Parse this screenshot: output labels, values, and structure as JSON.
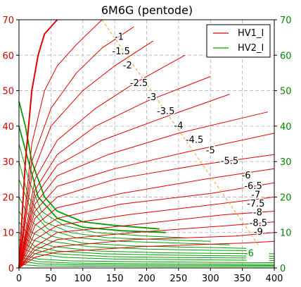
{
  "chart_data": {
    "type": "line",
    "title": "6M6G (pentode)",
    "xlabel": "",
    "ylabel": "",
    "xlim": [
      0,
      400
    ],
    "ylim_left": [
      0,
      70
    ],
    "ylim_right": [
      0,
      70
    ],
    "x_ticks": [
      "0",
      "50",
      "100",
      "150",
      "200",
      "250",
      "300",
      "350",
      "400"
    ],
    "y_ticks_left": [
      "0",
      "10",
      "20",
      "30",
      "40",
      "50",
      "60",
      "70"
    ],
    "y_ticks_right": [
      "0",
      "10",
      "20",
      "30",
      "40",
      "50",
      "60",
      "70"
    ],
    "grid": true,
    "legend_position": "top-right",
    "colors": {
      "hv1": "#e00000",
      "hv2": "#00a000",
      "load_line": "#f0a030",
      "text_right": "#008800"
    },
    "series": [
      {
        "name": "HV1_I",
        "color": "#e00000"
      },
      {
        "name": "HV2_I",
        "color": "#00a000"
      }
    ],
    "curve_labels": [
      "-1",
      "-1.5",
      "-2",
      "-2.5",
      "-3",
      "-3.5",
      "-4",
      "-4.5",
      "-5",
      "-5.5",
      "-6",
      "-6.5",
      "-7",
      "-7.5",
      "-8",
      "-8.5",
      "-9"
    ],
    "curve_label_positions": [
      {
        "x": 157,
        "y": 65
      },
      {
        "x": 160,
        "y": 61
      },
      {
        "x": 170,
        "y": 57
      },
      {
        "x": 188,
        "y": 52
      },
      {
        "x": 208,
        "y": 48
      },
      {
        "x": 230,
        "y": 44
      },
      {
        "x": 250,
        "y": 40
      },
      {
        "x": 275,
        "y": 36
      },
      {
        "x": 300,
        "y": 33
      },
      {
        "x": 330,
        "y": 30
      },
      {
        "x": 356,
        "y": 26
      },
      {
        "x": 367,
        "y": 23
      },
      {
        "x": 371,
        "y": 20.5
      },
      {
        "x": 371,
        "y": 18
      },
      {
        "x": 374,
        "y": 15.5
      },
      {
        "x": 375,
        "y": 12.5
      },
      {
        "x": 375,
        "y": 10
      }
    ],
    "extra_label": {
      "text": "-6",
      "x": 374,
      "y": 4
    },
    "load_line": {
      "x": [
        130,
        400
      ],
      "y": [
        70,
        0
      ]
    },
    "hv1_curves": [
      {
        "id": "c1",
        "points": [
          [
            0,
            0
          ],
          [
            10,
            30
          ],
          [
            20,
            50
          ],
          [
            30,
            60
          ],
          [
            40,
            66
          ],
          [
            60,
            70
          ]
        ]
      },
      {
        "id": "c2",
        "points": [
          [
            0,
            0
          ],
          [
            20,
            35
          ],
          [
            40,
            50
          ],
          [
            60,
            57
          ],
          [
            90,
            63
          ],
          [
            130,
            70
          ]
        ]
      },
      {
        "id": "c3",
        "points": [
          [
            0,
            0
          ],
          [
            20,
            30
          ],
          [
            50,
            45
          ],
          [
            90,
            55
          ],
          [
            130,
            62
          ],
          [
            180,
            68
          ]
        ]
      },
      {
        "id": "c4",
        "points": [
          [
            0,
            0
          ],
          [
            20,
            26
          ],
          [
            50,
            40
          ],
          [
            100,
            50
          ],
          [
            150,
            57
          ],
          [
            210,
            64
          ]
        ]
      },
      {
        "id": "c5",
        "points": [
          [
            0,
            0
          ],
          [
            25,
            25
          ],
          [
            60,
            36
          ],
          [
            120,
            45
          ],
          [
            180,
            52
          ],
          [
            260,
            60
          ]
        ]
      },
      {
        "id": "c6",
        "points": [
          [
            0,
            0
          ],
          [
            25,
            22
          ],
          [
            60,
            32
          ],
          [
            120,
            40
          ],
          [
            200,
            47
          ],
          [
            300,
            54
          ]
        ]
      },
      {
        "id": "c7",
        "points": [
          [
            0,
            0
          ],
          [
            25,
            20
          ],
          [
            60,
            29
          ],
          [
            130,
            36
          ],
          [
            220,
            42
          ],
          [
            330,
            49
          ]
        ]
      },
      {
        "id": "c8",
        "points": [
          [
            0,
            0
          ],
          [
            25,
            18
          ],
          [
            60,
            26
          ],
          [
            140,
            32
          ],
          [
            250,
            38
          ],
          [
            390,
            44
          ]
        ]
      },
      {
        "id": "c9",
        "points": [
          [
            0,
            0
          ],
          [
            25,
            16
          ],
          [
            60,
            23
          ],
          [
            150,
            28
          ],
          [
            270,
            33
          ],
          [
            400,
            38
          ]
        ]
      },
      {
        "id": "c10",
        "points": [
          [
            0,
            0
          ],
          [
            25,
            14
          ],
          [
            60,
            20
          ],
          [
            150,
            25
          ],
          [
            280,
            29
          ],
          [
            400,
            32
          ]
        ]
      },
      {
        "id": "c11",
        "points": [
          [
            0,
            0
          ],
          [
            25,
            12
          ],
          [
            60,
            17
          ],
          [
            160,
            21
          ],
          [
            290,
            25
          ],
          [
            400,
            28
          ]
        ]
      },
      {
        "id": "c12",
        "points": [
          [
            0,
            0
          ],
          [
            25,
            10
          ],
          [
            60,
            14
          ],
          [
            160,
            18
          ],
          [
            300,
            21
          ],
          [
            400,
            24
          ]
        ]
      },
      {
        "id": "c13",
        "points": [
          [
            0,
            0
          ],
          [
            25,
            8
          ],
          [
            60,
            12
          ],
          [
            170,
            15
          ],
          [
            310,
            18
          ],
          [
            400,
            20
          ]
        ]
      },
      {
        "id": "c14",
        "points": [
          [
            0,
            0
          ],
          [
            25,
            6
          ],
          [
            60,
            10
          ],
          [
            170,
            12
          ],
          [
            320,
            15
          ],
          [
            400,
            16
          ]
        ]
      },
      {
        "id": "c15",
        "points": [
          [
            0,
            0
          ],
          [
            25,
            5
          ],
          [
            60,
            8
          ],
          [
            180,
            10
          ],
          [
            330,
            12
          ],
          [
            400,
            13
          ]
        ]
      },
      {
        "id": "c16",
        "points": [
          [
            0,
            0
          ],
          [
            25,
            4
          ],
          [
            60,
            6
          ],
          [
            180,
            8
          ],
          [
            340,
            9
          ],
          [
            400,
            10
          ]
        ]
      },
      {
        "id": "c17",
        "points": [
          [
            0,
            0
          ],
          [
            25,
            3
          ],
          [
            60,
            4.5
          ],
          [
            190,
            6
          ],
          [
            350,
            7
          ],
          [
            400,
            7.5
          ]
        ]
      }
    ],
    "hv2_curves": [
      {
        "id": "g1",
        "points": [
          [
            0,
            47
          ],
          [
            10,
            40
          ],
          [
            20,
            30
          ],
          [
            40,
            20
          ],
          [
            60,
            16
          ],
          [
            100,
            13
          ],
          [
            150,
            12
          ],
          [
            220,
            11
          ]
        ]
      },
      {
        "id": "g2",
        "points": [
          [
            0,
            40
          ],
          [
            15,
            30
          ],
          [
            30,
            20
          ],
          [
            60,
            14
          ],
          [
            100,
            11.5
          ],
          [
            160,
            10.5
          ],
          [
            230,
            10
          ]
        ]
      },
      {
        "id": "g3",
        "points": [
          [
            0,
            35
          ],
          [
            15,
            25
          ],
          [
            35,
            16
          ],
          [
            70,
            12
          ],
          [
            120,
            10
          ],
          [
            200,
            9
          ],
          [
            260,
            8.5
          ]
        ]
      },
      {
        "id": "g4",
        "points": [
          [
            0,
            30
          ],
          [
            15,
            20
          ],
          [
            40,
            13
          ],
          [
            80,
            10
          ],
          [
            140,
            8.5
          ],
          [
            220,
            8
          ],
          [
            300,
            7.5
          ]
        ]
      },
      {
        "id": "g5",
        "points": [
          [
            0,
            25
          ],
          [
            20,
            16
          ],
          [
            45,
            11
          ],
          [
            90,
            8.5
          ],
          [
            160,
            7.5
          ],
          [
            250,
            7
          ],
          [
            330,
            6.5
          ]
        ]
      },
      {
        "id": "g6",
        "points": [
          [
            0,
            20
          ],
          [
            20,
            13
          ],
          [
            50,
            9
          ],
          [
            100,
            7
          ],
          [
            180,
            6.2
          ],
          [
            280,
            5.8
          ],
          [
            360,
            5.5
          ]
        ]
      },
      {
        "id": "g7",
        "points": [
          [
            0,
            16
          ],
          [
            20,
            10
          ],
          [
            50,
            7.5
          ],
          [
            110,
            6
          ],
          [
            200,
            5.3
          ],
          [
            300,
            5
          ],
          [
            390,
            4.8
          ]
        ]
      },
      {
        "id": "g8",
        "points": [
          [
            0,
            13
          ],
          [
            20,
            8
          ],
          [
            55,
            6
          ],
          [
            120,
            4.8
          ],
          [
            220,
            4.3
          ],
          [
            320,
            4.1
          ],
          [
            400,
            4
          ]
        ]
      },
      {
        "id": "g9",
        "points": [
          [
            0,
            10
          ],
          [
            25,
            6
          ],
          [
            60,
            4.8
          ],
          [
            130,
            4
          ],
          [
            240,
            3.6
          ],
          [
            340,
            3.4
          ],
          [
            400,
            3.3
          ]
        ]
      },
      {
        "id": "g10",
        "points": [
          [
            0,
            8
          ],
          [
            25,
            5
          ],
          [
            60,
            4
          ],
          [
            140,
            3.2
          ],
          [
            260,
            2.9
          ],
          [
            360,
            2.8
          ],
          [
            400,
            2.7
          ]
        ]
      },
      {
        "id": "g11",
        "points": [
          [
            0,
            6
          ],
          [
            25,
            4
          ],
          [
            70,
            3
          ],
          [
            150,
            2.5
          ],
          [
            270,
            2.3
          ],
          [
            400,
            2.1
          ]
        ]
      },
      {
        "id": "g12",
        "points": [
          [
            0,
            4
          ],
          [
            30,
            2.5
          ],
          [
            80,
            2
          ],
          [
            170,
            1.8
          ],
          [
            300,
            1.6
          ],
          [
            400,
            1.5
          ]
        ]
      },
      {
        "id": "g13",
        "points": [
          [
            0,
            3
          ],
          [
            30,
            1.8
          ],
          [
            80,
            1.4
          ],
          [
            180,
            1.2
          ],
          [
            320,
            1.1
          ],
          [
            400,
            1
          ]
        ]
      },
      {
        "id": "g14",
        "points": [
          [
            0,
            2
          ],
          [
            30,
            1.2
          ],
          [
            90,
            0.9
          ],
          [
            200,
            0.8
          ],
          [
            400,
            0.7
          ]
        ]
      },
      {
        "id": "g15",
        "points": [
          [
            0,
            1
          ],
          [
            30,
            0.6
          ],
          [
            100,
            0.5
          ],
          [
            250,
            0.4
          ],
          [
            400,
            0.4
          ]
        ]
      }
    ]
  }
}
